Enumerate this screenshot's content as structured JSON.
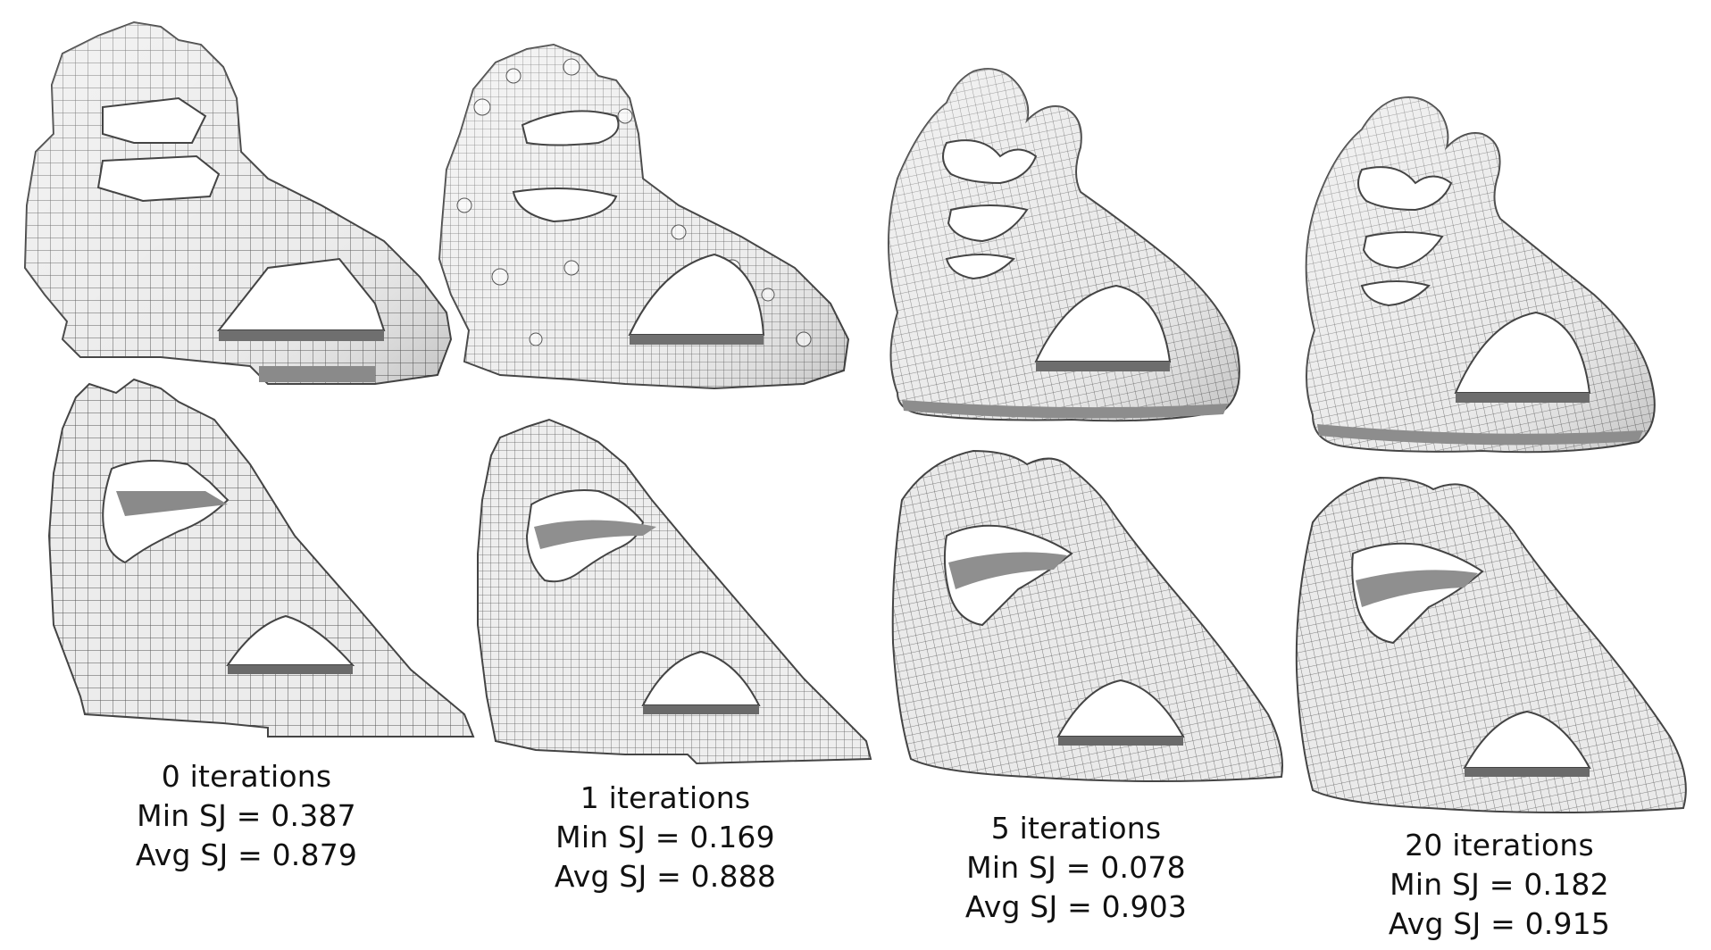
{
  "figure": {
    "mesh_fill": "#e9e9e9",
    "mesh_line": "#5a5a5a",
    "mesh_shadow": "#9a9a9a",
    "columns": [
      {
        "iterations": "0 iterations",
        "min_sj": "Min SJ = 0.387",
        "avg_sj": "Avg SJ = 0.879",
        "style": "blocky"
      },
      {
        "iterations": "1 iterations",
        "min_sj": "Min SJ = 0.169",
        "avg_sj": "Avg SJ = 0.888",
        "style": "bumpy"
      },
      {
        "iterations": "5 iterations",
        "min_sj": "Min SJ = 0.078",
        "avg_sj": "Avg SJ = 0.903",
        "style": "smooth"
      },
      {
        "iterations": "20 iterations",
        "min_sj": "Min SJ = 0.182",
        "avg_sj": "Avg SJ = 0.915",
        "style": "smooth"
      }
    ]
  }
}
